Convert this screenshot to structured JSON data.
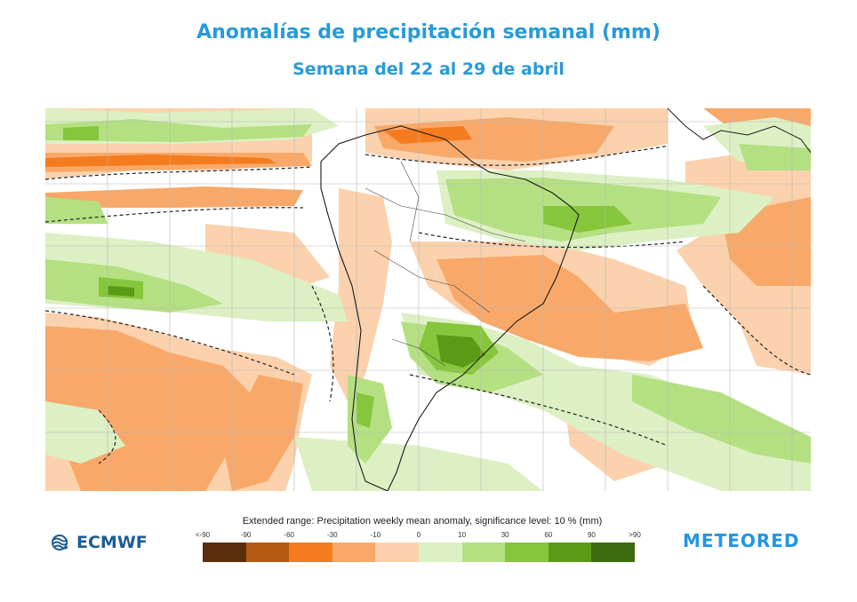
{
  "title": "Anomalías de precipitación semanal (mm)",
  "subtitle": "Semana del 22 al 29 de abril",
  "legend": {
    "caption": "Extended range: Precipitation weekly mean anomaly, significance level: 10 % (mm)",
    "ticks": [
      "<-90",
      "-90",
      "-60",
      "-30",
      "-10",
      "0",
      "10",
      "30",
      "60",
      "90",
      ">90"
    ],
    "colors": [
      "#5a2e0c",
      "#b35a12",
      "#f57c1e",
      "#f8a96a",
      "#fbd2ad",
      "#dcf0c4",
      "#b4e082",
      "#86c63c",
      "#5a9a16",
      "#3e6a0e"
    ]
  },
  "logos": {
    "ecmwf": "ECMWF",
    "meteored": "METEORED",
    "ecmwf_icon": "ecmwf-wave-icon"
  },
  "map": {
    "region": "South America and surrounding oceans",
    "anomaly_colors": {
      "dry_light": "#fbd2ad",
      "dry": "#f8a96a",
      "dry_strong": "#f57c1e",
      "wet_light": "#dcf0c4",
      "wet": "#b4e082",
      "wet_strong": "#86c63c",
      "wet_very": "#5a9a16"
    }
  }
}
